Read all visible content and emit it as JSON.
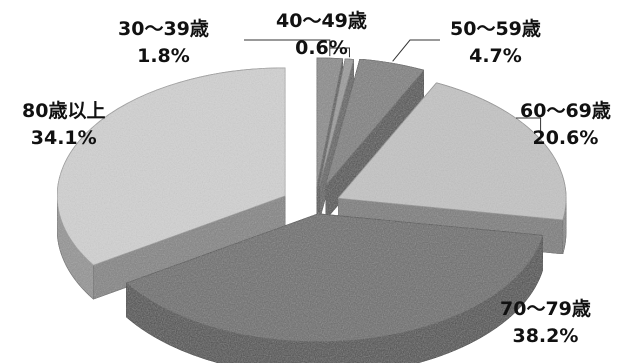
{
  "chart_data": {
    "type": "pie",
    "style": "exploded 3D pie, grayscale stone textures",
    "slices": [
      {
        "label": "30～39歳",
        "value": 1.8,
        "value_text": "1.8%",
        "color": "#8a8a8a"
      },
      {
        "label": "40～49歳",
        "value": 0.6,
        "value_text": "0.6%",
        "color": "#9a9a9a"
      },
      {
        "label": "50～59歳",
        "value": 4.7,
        "value_text": "4.7%",
        "color": "#7e7e7e"
      },
      {
        "label": "60～69歳",
        "value": 20.6,
        "value_text": "20.6%",
        "color": "#c4c4c4"
      },
      {
        "label": "70～79歳",
        "value": 38.2,
        "value_text": "38.2%",
        "color": "#6a6a6a"
      },
      {
        "label": "80歳以上",
        "value": 34.1,
        "value_text": "34.1%",
        "color": "#d2d2d2"
      }
    ]
  }
}
